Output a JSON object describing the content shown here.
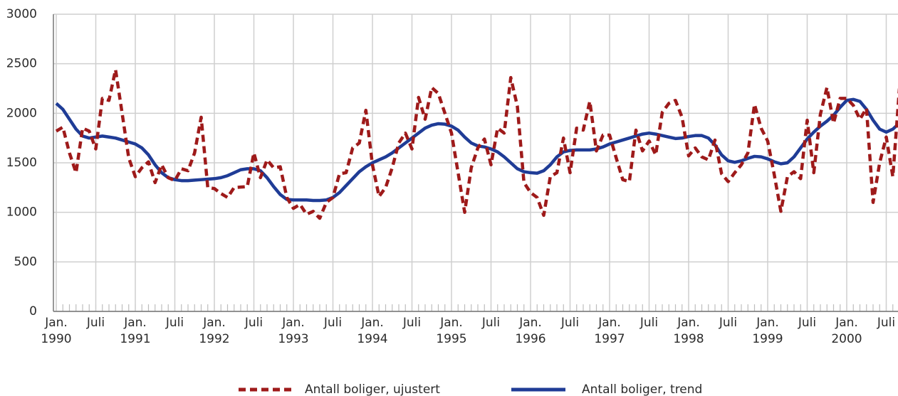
{
  "chart_data": {
    "type": "line",
    "categories": [
      "Jan. 1990",
      null,
      null,
      null,
      null,
      null,
      "Juli",
      null,
      null,
      null,
      null,
      null,
      "Jan. 1991",
      null,
      null,
      null,
      null,
      null,
      "Juli",
      null,
      null,
      null,
      null,
      null,
      "Jan. 1992",
      null,
      null,
      null,
      null,
      null,
      "Juli",
      null,
      null,
      null,
      null,
      null,
      "Jan. 1993",
      null,
      null,
      null,
      null,
      null,
      "Juli",
      null,
      null,
      null,
      null,
      null,
      "Jan. 1994",
      null,
      null,
      null,
      null,
      null,
      "Juli",
      null,
      null,
      null,
      null,
      null,
      "Jan. 1995",
      null,
      null,
      null,
      null,
      null,
      "Juli",
      null,
      null,
      null,
      null,
      null,
      "Jan. 1996",
      null,
      null,
      null,
      null,
      null,
      "Juli",
      null,
      null,
      null,
      null,
      null,
      "Jan. 1997",
      null,
      null,
      null,
      null,
      null,
      "Juli",
      null,
      null,
      null,
      null,
      null,
      "Jan. 1998",
      null,
      null,
      null,
      null,
      null,
      "Juli",
      null,
      null,
      null,
      null,
      null,
      "Jan. 1999",
      null,
      null,
      null,
      null,
      null,
      "Juli",
      null,
      null,
      null,
      null,
      null,
      "Jan. 2000",
      null,
      null,
      null,
      null,
      null,
      "Juli",
      null,
      null
    ],
    "series": [
      {
        "name": "Antall boliger, ujustert",
        "color": "#9e1a1a",
        "dashed": true,
        "values": [
          1820,
          1860,
          1600,
          1400,
          1850,
          1820,
          1640,
          2150,
          2130,
          2440,
          2000,
          1550,
          1360,
          1450,
          1510,
          1300,
          1480,
          1350,
          1320,
          1440,
          1420,
          1600,
          1960,
          1250,
          1240,
          1190,
          1150,
          1250,
          1255,
          1260,
          1600,
          1350,
          1530,
          1450,
          1460,
          1150,
          1040,
          1080,
          980,
          1010,
          940,
          1100,
          1150,
          1390,
          1400,
          1650,
          1700,
          2030,
          1480,
          1160,
          1250,
          1450,
          1700,
          1800,
          1640,
          2160,
          1940,
          2260,
          2200,
          2000,
          1800,
          1400,
          1000,
          1450,
          1650,
          1740,
          1480,
          1850,
          1800,
          2360,
          2070,
          1300,
          1200,
          1150,
          970,
          1360,
          1400,
          1750,
          1400,
          1850,
          1830,
          2120,
          1620,
          1780,
          1780,
          1550,
          1330,
          1310,
          1830,
          1620,
          1720,
          1580,
          2010,
          2100,
          2130,
          1960,
          1570,
          1650,
          1560,
          1530,
          1730,
          1390,
          1310,
          1400,
          1480,
          1600,
          2090,
          1850,
          1720,
          1380,
          1010,
          1360,
          1410,
          1340,
          1930,
          1400,
          1990,
          2260,
          1900,
          2150,
          2150,
          2080,
          1940,
          2050,
          1100,
          1500,
          1760,
          1360,
          2250
        ]
      },
      {
        "name": "Antall boliger, trend",
        "color": "#1f3c96",
        "dashed": false,
        "values": [
          2100,
          2040,
          1940,
          1840,
          1770,
          1750,
          1760,
          1770,
          1760,
          1750,
          1730,
          1710,
          1690,
          1650,
          1580,
          1480,
          1400,
          1350,
          1330,
          1320,
          1320,
          1325,
          1330,
          1335,
          1340,
          1350,
          1370,
          1400,
          1430,
          1440,
          1440,
          1420,
          1350,
          1260,
          1180,
          1130,
          1125,
          1125,
          1125,
          1120,
          1120,
          1125,
          1150,
          1200,
          1270,
          1340,
          1410,
          1460,
          1500,
          1530,
          1560,
          1600,
          1650,
          1700,
          1750,
          1800,
          1850,
          1880,
          1895,
          1890,
          1870,
          1830,
          1760,
          1700,
          1670,
          1660,
          1640,
          1610,
          1560,
          1500,
          1440,
          1410,
          1400,
          1395,
          1420,
          1480,
          1560,
          1610,
          1625,
          1630,
          1630,
          1630,
          1640,
          1660,
          1690,
          1710,
          1730,
          1750,
          1770,
          1790,
          1800,
          1790,
          1775,
          1760,
          1745,
          1750,
          1765,
          1775,
          1775,
          1750,
          1680,
          1580,
          1520,
          1505,
          1520,
          1545,
          1565,
          1560,
          1540,
          1510,
          1490,
          1500,
          1560,
          1650,
          1740,
          1810,
          1870,
          1920,
          1980,
          2060,
          2130,
          2140,
          2120,
          2040,
          1930,
          1840,
          1810,
          1840,
          1900
        ]
      }
    ],
    "ylim": [
      0,
      3000
    ],
    "yticks": [
      0,
      500,
      1000,
      1500,
      2000,
      2500,
      3000
    ],
    "grid": true
  }
}
